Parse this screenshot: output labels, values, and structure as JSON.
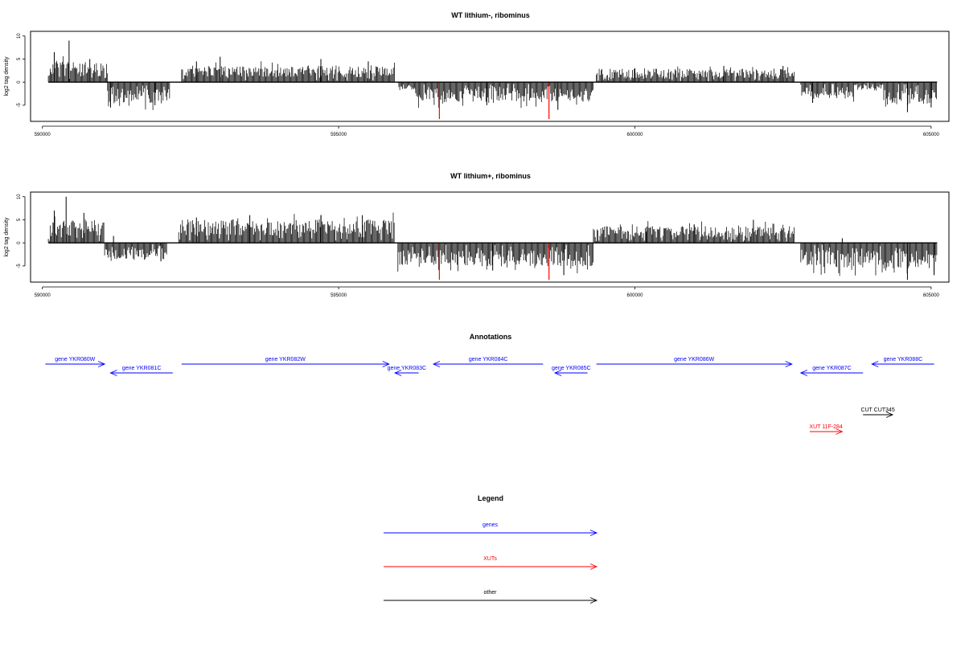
{
  "chart_data": [
    {
      "type": "bar",
      "title": "WT lithium-, ribominus",
      "ylabel": "log2 tag density",
      "xlabel": "",
      "xlim": [
        589800,
        605300
      ],
      "ylim": [
        -8.5,
        11
      ],
      "xticks": [
        590000,
        595000,
        600000,
        605000
      ],
      "yticks": [
        -5,
        0,
        5,
        10
      ],
      "colors": {
        "bars": "#000000",
        "highlight": "#ff0000"
      },
      "segments": [
        {
          "start": 590100,
          "end": 591100,
          "level": 3.0,
          "peaks": [
            [
              590200,
              6.5
            ],
            [
              590450,
              9.0
            ],
            [
              590800,
              5.0
            ]
          ]
        },
        {
          "start": 591100,
          "end": 592150,
          "level": -3.2,
          "peaks": [
            [
              591150,
              -5.5
            ],
            [
              591900,
              -5.0
            ]
          ]
        },
        {
          "start": 592350,
          "end": 595950,
          "level": 2.5,
          "peaks": [
            [
              592600,
              4.5
            ],
            [
              593000,
              5.5
            ],
            [
              594700,
              5.0
            ],
            [
              595500,
              4.5
            ]
          ]
        },
        {
          "start": 596000,
          "end": 596300,
          "level": -1.2,
          "peaks": []
        },
        {
          "start": 596300,
          "end": 599300,
          "level": -3.0,
          "peaks": [
            [
              597500,
              -5.0
            ],
            [
              598700,
              -6.0
            ]
          ]
        },
        {
          "start": 599350,
          "end": 602700,
          "level": 2.0,
          "peaks": [
            [
              600000,
              3.0
            ],
            [
              601500,
              3.5
            ],
            [
              602500,
              3.5
            ]
          ]
        },
        {
          "start": 602800,
          "end": 603700,
          "level": -2.5,
          "peaks": [
            [
              603000,
              -4.5
            ]
          ]
        },
        {
          "start": 603700,
          "end": 604200,
          "level": -1.0,
          "peaks": []
        },
        {
          "start": 604200,
          "end": 605100,
          "level": -3.5,
          "peaks": [
            [
              604600,
              -6.5
            ],
            [
              605000,
              -5.5
            ]
          ]
        }
      ],
      "highlight_lines": [
        [
          596700,
          -8.0
        ],
        [
          598550,
          -8.0
        ]
      ],
      "seed": 11
    },
    {
      "type": "bar",
      "title": "WT lithium+, ribominus",
      "ylabel": "log2 tag density",
      "xlabel": "",
      "xlim": [
        589800,
        605300
      ],
      "ylim": [
        -8.5,
        11
      ],
      "xticks": [
        590000,
        595000,
        600000,
        605000
      ],
      "yticks": [
        -5,
        0,
        5,
        10
      ],
      "colors": {
        "bars": "#000000",
        "highlight": "#ff0000"
      },
      "segments": [
        {
          "start": 590100,
          "end": 591050,
          "level": 3.5,
          "peaks": [
            [
              590200,
              7.0
            ],
            [
              590400,
              10.0
            ],
            [
              590700,
              6.5
            ]
          ]
        },
        {
          "start": 591050,
          "end": 592100,
          "level": -2.5,
          "peaks": [
            [
              591200,
              1.5
            ],
            [
              592000,
              -4.0
            ]
          ]
        },
        {
          "start": 592300,
          "end": 595950,
          "level": 3.5,
          "peaks": [
            [
              592600,
              5.5
            ],
            [
              593500,
              6.0
            ],
            [
              594700,
              6.0
            ],
            [
              595400,
              6.0
            ]
          ]
        },
        {
          "start": 596000,
          "end": 599300,
          "level": -3.5,
          "peaks": [
            [
              597600,
              -6.0
            ],
            [
              598800,
              -7.0
            ]
          ]
        },
        {
          "start": 599300,
          "end": 602700,
          "level": 2.5,
          "peaks": [
            [
              600200,
              3.5
            ],
            [
              601000,
              4.0
            ],
            [
              602000,
              5.0
            ]
          ]
        },
        {
          "start": 602800,
          "end": 605100,
          "level": -3.8,
          "peaks": [
            [
              603500,
              1.0
            ],
            [
              604600,
              -8.0
            ],
            [
              605050,
              -7.0
            ]
          ]
        }
      ],
      "highlight_lines": [
        [
          596700,
          -8.0
        ],
        [
          598550,
          -8.0
        ]
      ],
      "seed": 23
    }
  ],
  "annotations": {
    "title": "Annotations",
    "colors": {
      "genes": "#0000ff",
      "xuts": "#ff0000",
      "other": "#000000"
    },
    "genes": [
      {
        "label": "gene YKR080W",
        "start": 590050,
        "end": 591050,
        "dir": "forward"
      },
      {
        "label": "gene YKR081C",
        "start": 591150,
        "end": 592200,
        "dir": "reverse"
      },
      {
        "label": "gene YKR082W",
        "start": 592350,
        "end": 595850,
        "dir": "forward"
      },
      {
        "label": "gene YKR083C",
        "start": 595950,
        "end": 596350,
        "dir": "reverse"
      },
      {
        "label": "gene YKR084C",
        "start": 596600,
        "end": 598450,
        "dir": "reverse"
      },
      {
        "label": "gene YKR085C",
        "start": 598650,
        "end": 599200,
        "dir": "reverse"
      },
      {
        "label": "gene YKR086W",
        "start": 599350,
        "end": 602650,
        "dir": "forward"
      },
      {
        "label": "gene YKR087C",
        "start": 602800,
        "end": 603850,
        "dir": "reverse"
      },
      {
        "label": "gene YKR088C",
        "start": 604000,
        "end": 605050,
        "dir": "reverse"
      }
    ],
    "xuts": [
      {
        "label": "XUT 11F-284",
        "start": 602950,
        "end": 603500,
        "dir": "forward"
      }
    ],
    "other": [
      {
        "label": "CUT CUT345",
        "start": 603850,
        "end": 604350,
        "dir": "forward"
      }
    ]
  },
  "legend": {
    "title": "Legend",
    "items": [
      {
        "label": "genes",
        "color": "#0000ff"
      },
      {
        "label": "XUTs",
        "color": "#ff0000"
      },
      {
        "label": "other",
        "color": "#000000"
      }
    ]
  }
}
